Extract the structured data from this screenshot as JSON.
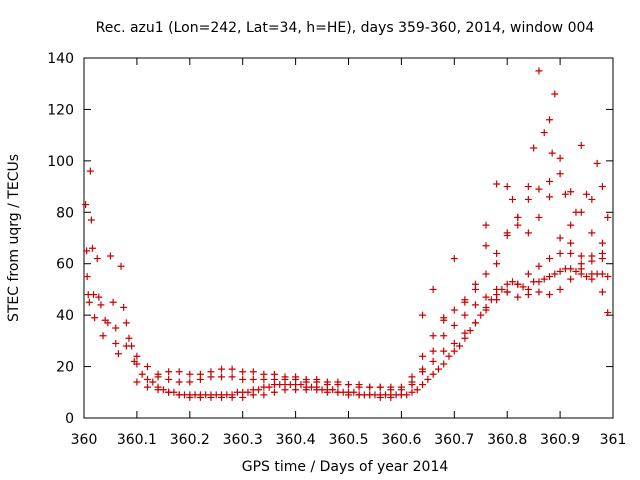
{
  "chart_data": {
    "type": "scatter",
    "title": "Rec. azu1 (Lon=242, Lat=34, h=HE), days 359-360, 2014, window 004",
    "xlabel": "GPS time / Days of year 2014",
    "ylabel": "STEC from uqrg / TECUs",
    "xlim": [
      360,
      361
    ],
    "ylim": [
      0,
      140
    ],
    "x_ticks": [
      360,
      360.1,
      360.2,
      360.3,
      360.4,
      360.5,
      360.6,
      360.7,
      360.8,
      360.9,
      361
    ],
    "x_tick_labels": [
      "360",
      "360.1",
      "360.2",
      "360.3",
      "360.4",
      "360.5",
      "360.6",
      "360.7",
      "360.8",
      "360.9",
      "361"
    ],
    "y_ticks": [
      0,
      20,
      40,
      60,
      80,
      100,
      120,
      140
    ],
    "y_tick_labels": [
      "0",
      "20",
      "40",
      "60",
      "80",
      "100",
      "120",
      "140"
    ],
    "grid": false,
    "legend": "none",
    "marker": "+",
    "color": "#cc0000",
    "series": [
      {
        "x": [
          360.003,
          360.005,
          360.006,
          360.008,
          360.01,
          360.012,
          360.014,
          360.016,
          360.018,
          360.02,
          360.025,
          360.028,
          360.032,
          360.036,
          360.04,
          360.045,
          360.05,
          360.055,
          360.06,
          360.065,
          360.07,
          360.075,
          360.08,
          360.085,
          360.09,
          360.095,
          360.1,
          360.11,
          360.12,
          360.13,
          360.14,
          360.15,
          360.16,
          360.17,
          360.18,
          360.19,
          360.2,
          360.21,
          360.22,
          360.23,
          360.24,
          360.25,
          360.26,
          360.27,
          360.28,
          360.29,
          360.3,
          360.31,
          360.32,
          360.33,
          360.34,
          360.35,
          360.36,
          360.37,
          360.38,
          360.39,
          360.4,
          360.41,
          360.42,
          360.43,
          360.44,
          360.45,
          360.46,
          360.47,
          360.48,
          360.49,
          360.5,
          360.51,
          360.52,
          360.53,
          360.54,
          360.55,
          360.56,
          360.57,
          360.58,
          360.59,
          360.6,
          360.61,
          360.62,
          360.63,
          360.64,
          360.65,
          360.66,
          360.67,
          360.68,
          360.69,
          360.7,
          360.71,
          360.72,
          360.73,
          360.74,
          360.75,
          360.76,
          360.77,
          360.78,
          360.79,
          360.8,
          360.81,
          360.82,
          360.83,
          360.84,
          360.85,
          360.86,
          360.87,
          360.88,
          360.89,
          360.9,
          360.91,
          360.92,
          360.93,
          360.94,
          360.95,
          360.96,
          360.97,
          360.98,
          360.99
        ],
        "y": [
          83,
          65,
          55,
          48,
          45,
          96,
          77,
          66,
          48,
          39,
          62,
          47,
          44,
          32,
          38,
          37,
          63,
          45,
          29,
          25,
          59,
          43,
          37,
          31,
          28,
          22,
          21,
          17,
          15,
          14,
          12,
          11,
          10,
          10,
          9,
          9,
          9,
          9,
          9,
          9,
          9,
          9,
          9,
          9,
          9,
          10,
          10,
          10,
          11,
          11,
          12,
          12,
          13,
          13,
          13,
          13,
          13,
          13,
          12,
          12,
          12,
          11,
          11,
          11,
          10,
          10,
          10,
          10,
          9,
          9,
          9,
          9,
          9,
          9,
          9,
          9,
          9,
          9,
          10,
          11,
          13,
          15,
          17,
          19,
          21,
          24,
          26,
          28,
          31,
          34,
          37,
          40,
          43,
          46,
          48,
          50,
          52,
          53,
          52,
          51,
          50,
          53,
          53,
          54,
          55,
          56,
          57,
          58,
          58,
          57,
          56,
          55,
          56,
          56,
          56,
          55
        ]
      },
      {
        "x": [
          360.06,
          360.08,
          360.1,
          360.12,
          360.14,
          360.16,
          360.18,
          360.2,
          360.22,
          360.24,
          360.26,
          360.28,
          360.3,
          360.32,
          360.34,
          360.36,
          360.38,
          360.4,
          360.42,
          360.44,
          360.46,
          360.48,
          360.5,
          360.52,
          360.54,
          360.56,
          360.58,
          360.6,
          360.62,
          360.64,
          360.66,
          360.68,
          360.7,
          360.72,
          360.74,
          360.76,
          360.78,
          360.8,
          360.82,
          360.84,
          360.86,
          360.88,
          360.9,
          360.92,
          360.94,
          360.96,
          360.98
        ],
        "y": [
          35,
          28,
          24,
          20,
          17,
          15,
          14,
          14,
          15,
          16,
          16,
          16,
          15,
          15,
          15,
          15,
          15,
          15,
          14,
          14,
          13,
          13,
          13,
          12,
          12,
          12,
          12,
          12,
          14,
          18,
          22,
          26,
          29,
          33,
          37,
          42,
          46,
          49,
          52,
          56,
          59,
          62,
          64,
          64,
          63,
          63,
          62
        ]
      },
      {
        "x": [
          360.1,
          360.12,
          360.14,
          360.16,
          360.18,
          360.2,
          360.22,
          360.24,
          360.26,
          360.28,
          360.3,
          360.32,
          360.34,
          360.36,
          360.38,
          360.4,
          360.42,
          360.44,
          360.46,
          360.48,
          360.5,
          360.52,
          360.54,
          360.56,
          360.58,
          360.6,
          360.62,
          360.64,
          360.66,
          360.68,
          360.7,
          360.72,
          360.74,
          360.76,
          360.78,
          360.8,
          360.82,
          360.84,
          360.86,
          360.88,
          360.9,
          360.92,
          360.94,
          360.96,
          360.98
        ],
        "y": [
          14,
          12,
          11,
          10,
          9,
          8,
          8,
          8,
          8,
          8,
          8,
          9,
          9,
          10,
          11,
          11,
          11,
          11,
          10,
          10,
          9,
          9,
          9,
          8,
          8,
          9,
          13,
          19,
          26,
          32,
          36,
          40,
          44,
          47,
          50,
          49,
          47,
          48,
          49,
          48,
          50,
          54,
          58,
          61,
          64
        ]
      },
      {
        "x": [
          360.14,
          360.16,
          360.18,
          360.2,
          360.22,
          360.24,
          360.26,
          360.28,
          360.3,
          360.32,
          360.34,
          360.36,
          360.38,
          360.4,
          360.42,
          360.44,
          360.46,
          360.48,
          360.5,
          360.52,
          360.54,
          360.56,
          360.58,
          360.6,
          360.62,
          360.64,
          360.66,
          360.68,
          360.7,
          360.72,
          360.74,
          360.76,
          360.78,
          360.8,
          360.82,
          360.84,
          360.86,
          360.88,
          360.9,
          360.92,
          360.94,
          360.96,
          360.98
        ],
        "y": [
          16,
          18,
          18,
          17,
          17,
          18,
          19,
          19,
          18,
          18,
          17,
          17,
          16,
          16,
          15,
          15,
          14,
          14,
          13,
          13,
          12,
          12,
          11,
          11,
          16,
          24,
          32,
          38,
          42,
          46,
          50,
          56,
          64,
          72,
          78,
          85,
          89,
          92,
          95,
          88,
          80,
          72,
          68
        ]
      },
      {
        "x": [
          360.76,
          360.78,
          360.8,
          360.81,
          360.82,
          360.84,
          360.85,
          360.86,
          360.87,
          360.88,
          360.885,
          360.89,
          360.9,
          360.91,
          360.92,
          360.93,
          360.94,
          360.95,
          360.96,
          360.97,
          360.98,
          360.99
        ],
        "y": [
          75,
          91,
          90,
          85,
          78,
          90,
          105,
          135,
          111,
          116,
          103,
          126,
          101,
          87,
          75,
          80,
          106,
          87,
          85,
          99,
          90,
          78
        ]
      },
      {
        "x": [
          360.64,
          360.66,
          360.68,
          360.7,
          360.72,
          360.74,
          360.76,
          360.78,
          360.8,
          360.82,
          360.84,
          360.86,
          360.88,
          360.9,
          360.92,
          360.94,
          360.96,
          360.98,
          360.99
        ],
        "y": [
          40,
          50,
          39,
          62,
          45,
          52,
          67,
          60,
          71,
          75,
          72,
          78,
          86,
          70,
          68,
          60,
          54,
          49,
          41
        ]
      }
    ]
  }
}
